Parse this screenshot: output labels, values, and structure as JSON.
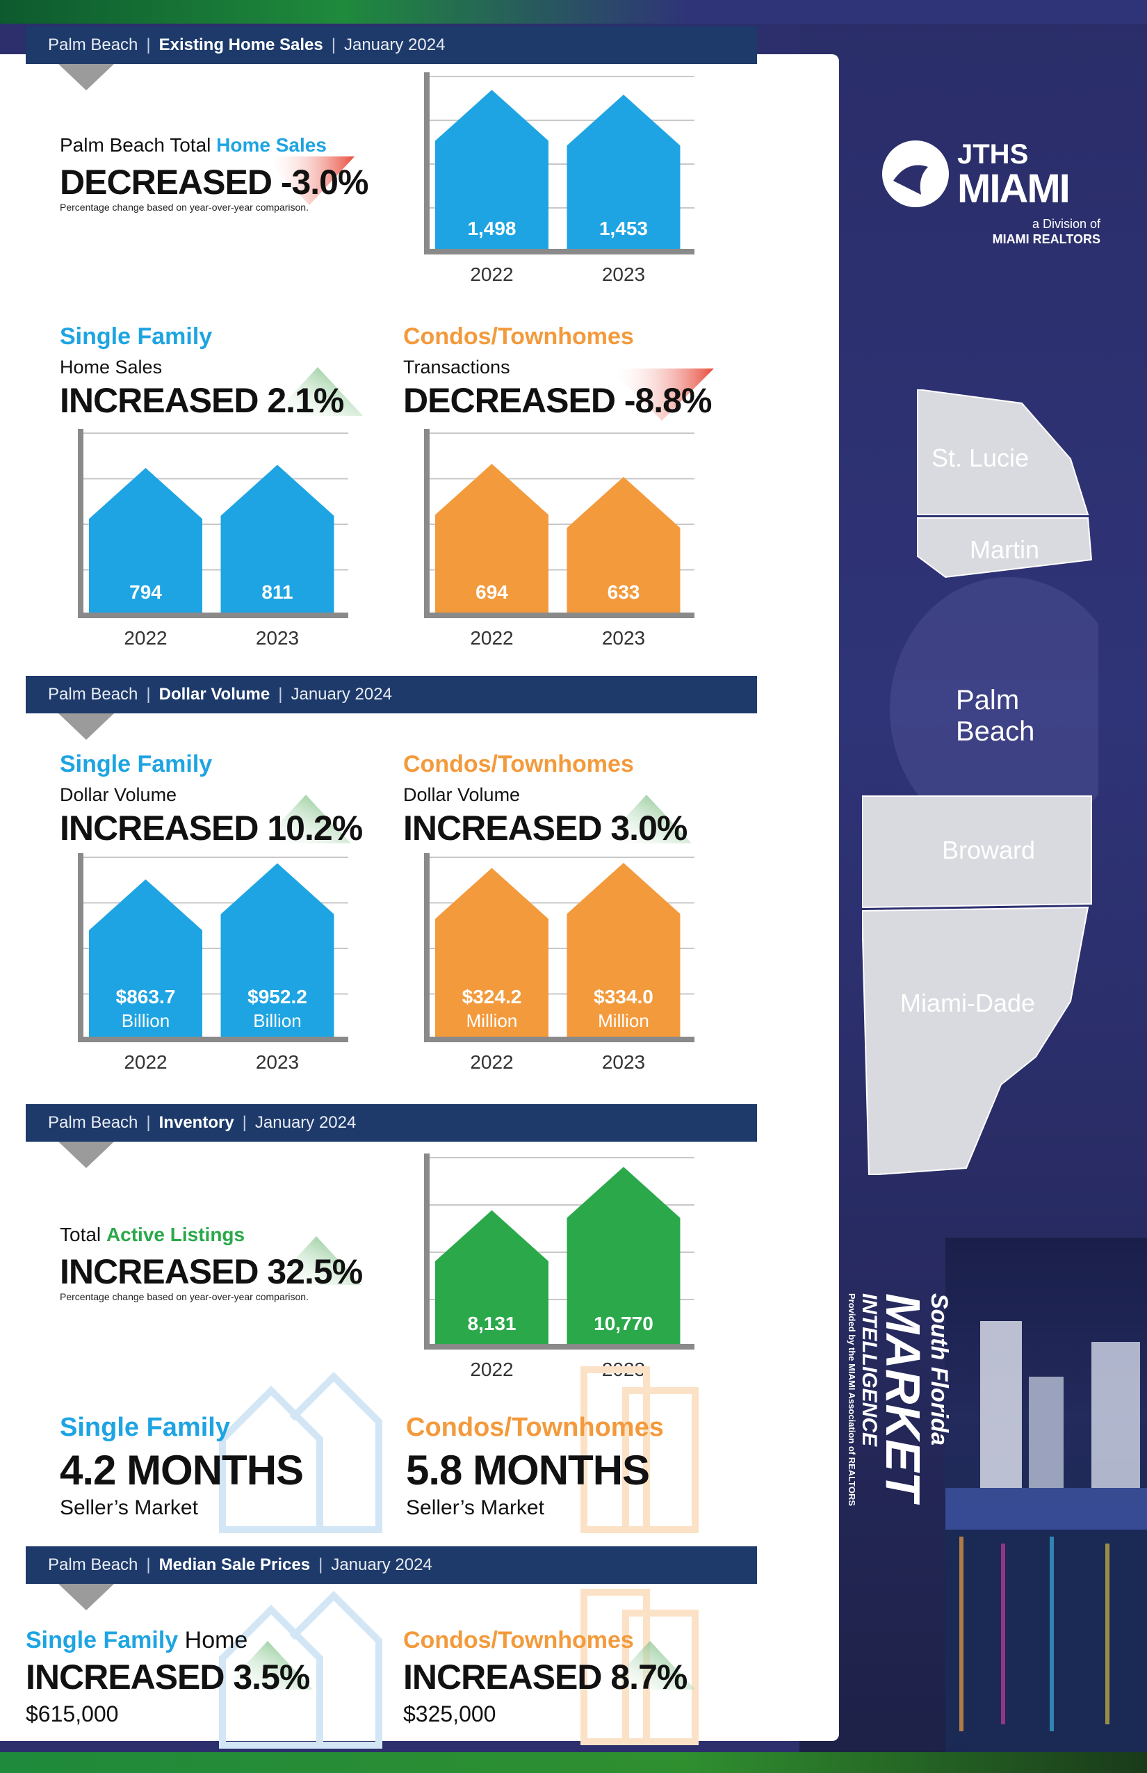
{
  "brand": {
    "logo_top": "JTHS",
    "logo_main": "MIAMI",
    "division": "a Division of",
    "realtors": "MIAMI REALTORS",
    "sfmi_line1": "South Florida",
    "sfmi_line2": "MARKET",
    "sfmi_line3": "INTELLIGENCE",
    "sfmi_line4": "Provided by the MIAMI Association of REALTORS"
  },
  "map": {
    "counties": [
      "St. Lucie",
      "Martin",
      "Palm Beach",
      "Broward",
      "Miami-Dade"
    ]
  },
  "colors": {
    "blue": "#1ea4e2",
    "orange": "#f39a3c",
    "green": "#2aa84a",
    "navy": "#1d3a6b",
    "up_arrow": "#63b36b",
    "down_arrow": "#e84b3c"
  },
  "sections": {
    "existing": {
      "region": "Palm Beach",
      "topic": "Existing Home Sales",
      "period": "January 2024"
    },
    "dollar": {
      "region": "Palm Beach",
      "topic": "Dollar Volume",
      "period": "January 2024"
    },
    "inventory": {
      "region": "Palm Beach",
      "topic": "Inventory",
      "period": "January 2024"
    },
    "median": {
      "region": "Palm Beach",
      "topic": "Median Sale Prices",
      "period": "January 2024"
    }
  },
  "total_sales": {
    "kicker_pre": "Palm Beach Total ",
    "kicker_hl": "Home Sales",
    "headline": "DECREASED -3.0%",
    "note": "Percentage change based on year-over-year comparison.",
    "trend": "down"
  },
  "sf_sales": {
    "category": "Single Family",
    "sub": "Home Sales",
    "headline": "INCREASED 2.1%",
    "trend": "up"
  },
  "condo_sales": {
    "category": "Condos/Townhomes",
    "sub": "Transactions",
    "headline": "DECREASED -8.8%",
    "trend": "down"
  },
  "sf_dollar": {
    "category": "Single Family",
    "sub": "Dollar Volume",
    "headline": "INCREASED 10.2%",
    "trend": "up"
  },
  "condo_dollar": {
    "category": "Condos/Townhomes",
    "sub": "Dollar Volume",
    "headline": "INCREASED 3.0%",
    "trend": "up"
  },
  "listings": {
    "kicker_pre": "Total ",
    "kicker_hl": "Active Listings",
    "headline": "INCREASED 32.5%",
    "note": "Percentage change based on year-over-year comparison.",
    "trend": "up"
  },
  "months_supply": {
    "sf": {
      "category": "Single Family",
      "value": "4.2 MONTHS",
      "market": "Seller’s Market"
    },
    "condo": {
      "category": "Condos/Townhomes",
      "value": "5.8 MONTHS",
      "market": "Seller’s Market"
    }
  },
  "median": {
    "sf": {
      "category": "Single Family",
      "category_suffix": " Home",
      "headline": "INCREASED 3.5%",
      "price": "$615,000",
      "trend": "up"
    },
    "condo": {
      "category": "Condos/Townhomes",
      "headline": "INCREASED 8.7%",
      "price": "$325,000",
      "trend": "up"
    }
  },
  "chart_data": [
    {
      "id": "total_sales",
      "type": "bar",
      "categories": [
        "2022",
        "2023"
      ],
      "values": [
        1498,
        1453
      ],
      "labels": [
        "1,498",
        "1,453"
      ],
      "units": [
        "",
        ""
      ],
      "color": "#1ea4e2",
      "ylim": [
        0,
        1650
      ]
    },
    {
      "id": "sf_sales",
      "type": "bar",
      "categories": [
        "2022",
        "2023"
      ],
      "values": [
        794,
        811
      ],
      "labels": [
        "794",
        "811"
      ],
      "units": [
        "",
        ""
      ],
      "color": "#1ea4e2",
      "ylim": [
        0,
        1000
      ]
    },
    {
      "id": "condo_sales",
      "type": "bar",
      "categories": [
        "2022",
        "2023"
      ],
      "values": [
        694,
        633
      ],
      "labels": [
        "694",
        "633"
      ],
      "units": [
        "",
        ""
      ],
      "color": "#f39a3c",
      "ylim": [
        0,
        850
      ]
    },
    {
      "id": "sf_dollar",
      "type": "bar",
      "categories": [
        "2022",
        "2023"
      ],
      "values": [
        863.7,
        952.2
      ],
      "labels": [
        "$863.7",
        "$952.2"
      ],
      "units": [
        "Billion",
        "Billion"
      ],
      "color": "#1ea4e2",
      "ylim": [
        0,
        1000
      ]
    },
    {
      "id": "condo_dollar",
      "type": "bar",
      "categories": [
        "2022",
        "2023"
      ],
      "values": [
        324.2,
        334.0
      ],
      "labels": [
        "$324.2",
        "$334.0"
      ],
      "units": [
        "Million",
        "Million"
      ],
      "color": "#f39a3c",
      "ylim": [
        0,
        350
      ]
    },
    {
      "id": "listings",
      "type": "bar",
      "categories": [
        "2022",
        "2023"
      ],
      "values": [
        8131,
        10770
      ],
      "labels": [
        "8,131",
        "10,770"
      ],
      "units": [
        "",
        ""
      ],
      "color": "#2aa84a",
      "ylim": [
        0,
        11500
      ]
    }
  ]
}
